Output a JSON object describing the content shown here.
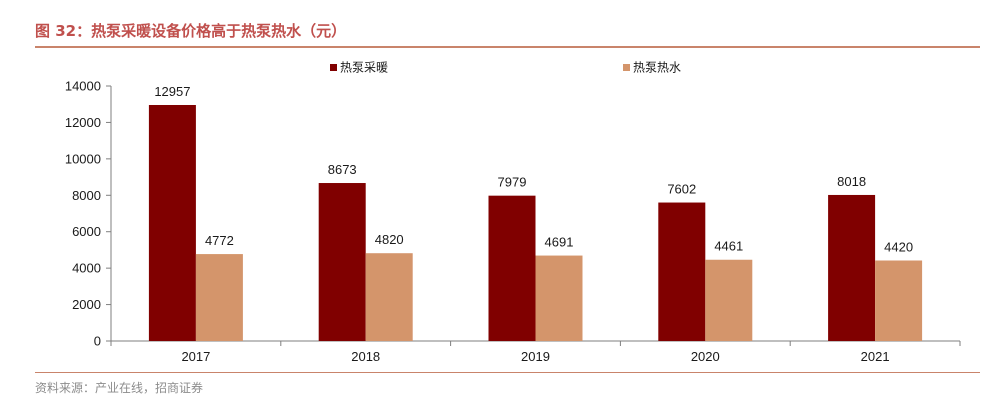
{
  "header": {
    "title": "图 32：热泵采暖设备价格高于热泵热水（元）"
  },
  "footer": {
    "source": "资料来源：产业在线，招商证券"
  },
  "colors": {
    "series1": "#800000",
    "series2": "#d4956b",
    "accent": "#c0504d",
    "rule": "#c9846b"
  },
  "chart_data": {
    "type": "bar",
    "categories": [
      "2017",
      "2018",
      "2019",
      "2020",
      "2021"
    ],
    "series": [
      {
        "name": "热泵采暖",
        "values": [
          12957,
          8673,
          7979,
          7602,
          8018
        ]
      },
      {
        "name": "热泵热水",
        "values": [
          4772,
          4820,
          4691,
          4461,
          4420
        ]
      }
    ],
    "yticks": [
      "0",
      "2000",
      "4000",
      "6000",
      "8000",
      "10000",
      "12000",
      "14000"
    ],
    "ylim": [
      0,
      14000
    ],
    "legend_position": "top-center",
    "grid": false
  }
}
